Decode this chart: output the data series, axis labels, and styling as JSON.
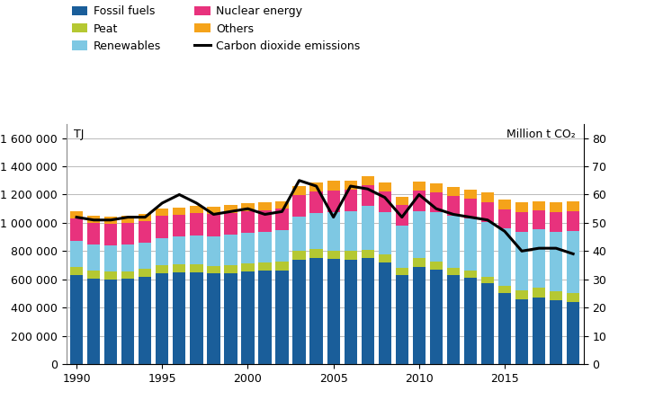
{
  "years": [
    1990,
    1991,
    1992,
    1993,
    1994,
    1995,
    1996,
    1997,
    1998,
    1999,
    2000,
    2001,
    2002,
    2003,
    2004,
    2005,
    2006,
    2007,
    2008,
    2009,
    2010,
    2011,
    2012,
    2013,
    2014,
    2015,
    2016,
    2017,
    2018,
    2019
  ],
  "fossil_fuels": [
    630000,
    605000,
    600000,
    605000,
    620000,
    640000,
    650000,
    650000,
    640000,
    645000,
    655000,
    660000,
    665000,
    740000,
    750000,
    745000,
    740000,
    750000,
    720000,
    630000,
    690000,
    670000,
    630000,
    610000,
    570000,
    500000,
    460000,
    470000,
    450000,
    440000
  ],
  "peat": [
    55000,
    55000,
    53000,
    53000,
    55000,
    58000,
    58000,
    58000,
    55000,
    55000,
    58000,
    58000,
    58000,
    62000,
    62000,
    60000,
    60000,
    60000,
    58000,
    52000,
    58000,
    55000,
    53000,
    53000,
    50000,
    53000,
    63000,
    68000,
    63000,
    63000
  ],
  "renewables": [
    185000,
    185000,
    190000,
    188000,
    185000,
    195000,
    195000,
    205000,
    210000,
    215000,
    215000,
    220000,
    225000,
    240000,
    260000,
    270000,
    285000,
    310000,
    300000,
    300000,
    335000,
    350000,
    365000,
    365000,
    385000,
    405000,
    415000,
    415000,
    425000,
    440000
  ],
  "nuclear_energy": [
    160000,
    155000,
    150000,
    155000,
    150000,
    155000,
    155000,
    155000,
    155000,
    155000,
    155000,
    150000,
    150000,
    155000,
    148000,
    155000,
    150000,
    148000,
    145000,
    145000,
    145000,
    140000,
    142000,
    142000,
    140000,
    138000,
    138000,
    138000,
    138000,
    138000
  ],
  "others": [
    50000,
    48000,
    48000,
    50000,
    50000,
    52000,
    52000,
    52000,
    55000,
    55000,
    55000,
    55000,
    55000,
    62000,
    68000,
    68000,
    62000,
    62000,
    62000,
    60000,
    62000,
    62000,
    62000,
    68000,
    68000,
    68000,
    68000,
    62000,
    68000,
    68000
  ],
  "co2_emissions": [
    52,
    51,
    51,
    52,
    52,
    57,
    60,
    57,
    53,
    54,
    55,
    53,
    54,
    65,
    63,
    52,
    63,
    62,
    59,
    52,
    60,
    55,
    53,
    52,
    51,
    47,
    40,
    41,
    41,
    39
  ],
  "colors": {
    "fossil_fuels": "#1a5e9a",
    "peat": "#b5c832",
    "renewables": "#7ec8e3",
    "nuclear_energy": "#e8327d",
    "others": "#f5a31a",
    "co2_line": "#000000"
  },
  "legend_labels": [
    "Fossil fuels",
    "Peat",
    "Renewables",
    "Nuclear energy",
    "Others",
    "Carbon dioxide emissions"
  ],
  "legend_order": [
    0,
    2,
    4,
    1,
    3,
    5
  ],
  "ylabel_left": "TJ",
  "ylabel_right": "Million t CO₂",
  "ylim_left": [
    0,
    1700000
  ],
  "ylim_right": [
    0,
    85
  ],
  "yticks_left": [
    0,
    200000,
    400000,
    600000,
    800000,
    1000000,
    1200000,
    1400000,
    1600000
  ],
  "yticks_right": [
    0,
    10,
    20,
    30,
    40,
    50,
    60,
    70,
    80
  ],
  "background_color": "#ffffff",
  "grid_color": "#b0b0b0",
  "xticks": [
    1990,
    1995,
    2000,
    2005,
    2010,
    2015
  ]
}
